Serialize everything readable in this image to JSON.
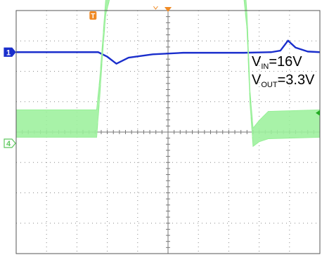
{
  "chart_data": {
    "type": "line",
    "grid": true,
    "x_divisions": 10,
    "y_divisions": 8,
    "series": [
      {
        "name": "1",
        "color": "#1a2ecc",
        "x": [
          0,
          2.7,
          3.0,
          3.3,
          3.7,
          4.5,
          5.5,
          7.5,
          8.4,
          8.7,
          8.95,
          9.2,
          9.6,
          10
        ],
        "y": [
          0.0,
          0.0,
          -0.15,
          -0.38,
          -0.18,
          -0.07,
          -0.02,
          -0.02,
          0.0,
          0.05,
          0.38,
          0.15,
          0.02,
          0.0
        ]
      },
      {
        "name": "4",
        "color": "#90ee90",
        "x": [
          0,
          2.65,
          2.75,
          2.85,
          2.95,
          3.1,
          3.3,
          7.5,
          7.6,
          7.7,
          7.8,
          8.0,
          8.3,
          10
        ],
        "center": [
          -2.35,
          -2.35,
          -1.2,
          0.2,
          1.5,
          2.25,
          2.3,
          2.2,
          1.0,
          -1.5,
          -2.8,
          -2.6,
          -2.4,
          -2.35
        ],
        "band": [
          0.9,
          0.9,
          0.6,
          0.4,
          0.5,
          0.85,
          0.9,
          0.9,
          0.5,
          0.4,
          0.6,
          0.7,
          0.9,
          0.9
        ]
      }
    ],
    "channel_markers": [
      {
        "label": "1",
        "level": 0.0,
        "color": "#1a2ecc"
      },
      {
        "label": "4",
        "level": -3.0,
        "color": "#5ec85e"
      }
    ],
    "trigger_marker": {
      "label": "T",
      "x": 2.53,
      "color": "#f08a24"
    }
  },
  "annotation": {
    "vin_main": "V",
    "vin_sub": "IN",
    "vin_value": "=16V",
    "vout_main": "V",
    "vout_sub": "OUT",
    "vout_value": "=3.3V"
  }
}
